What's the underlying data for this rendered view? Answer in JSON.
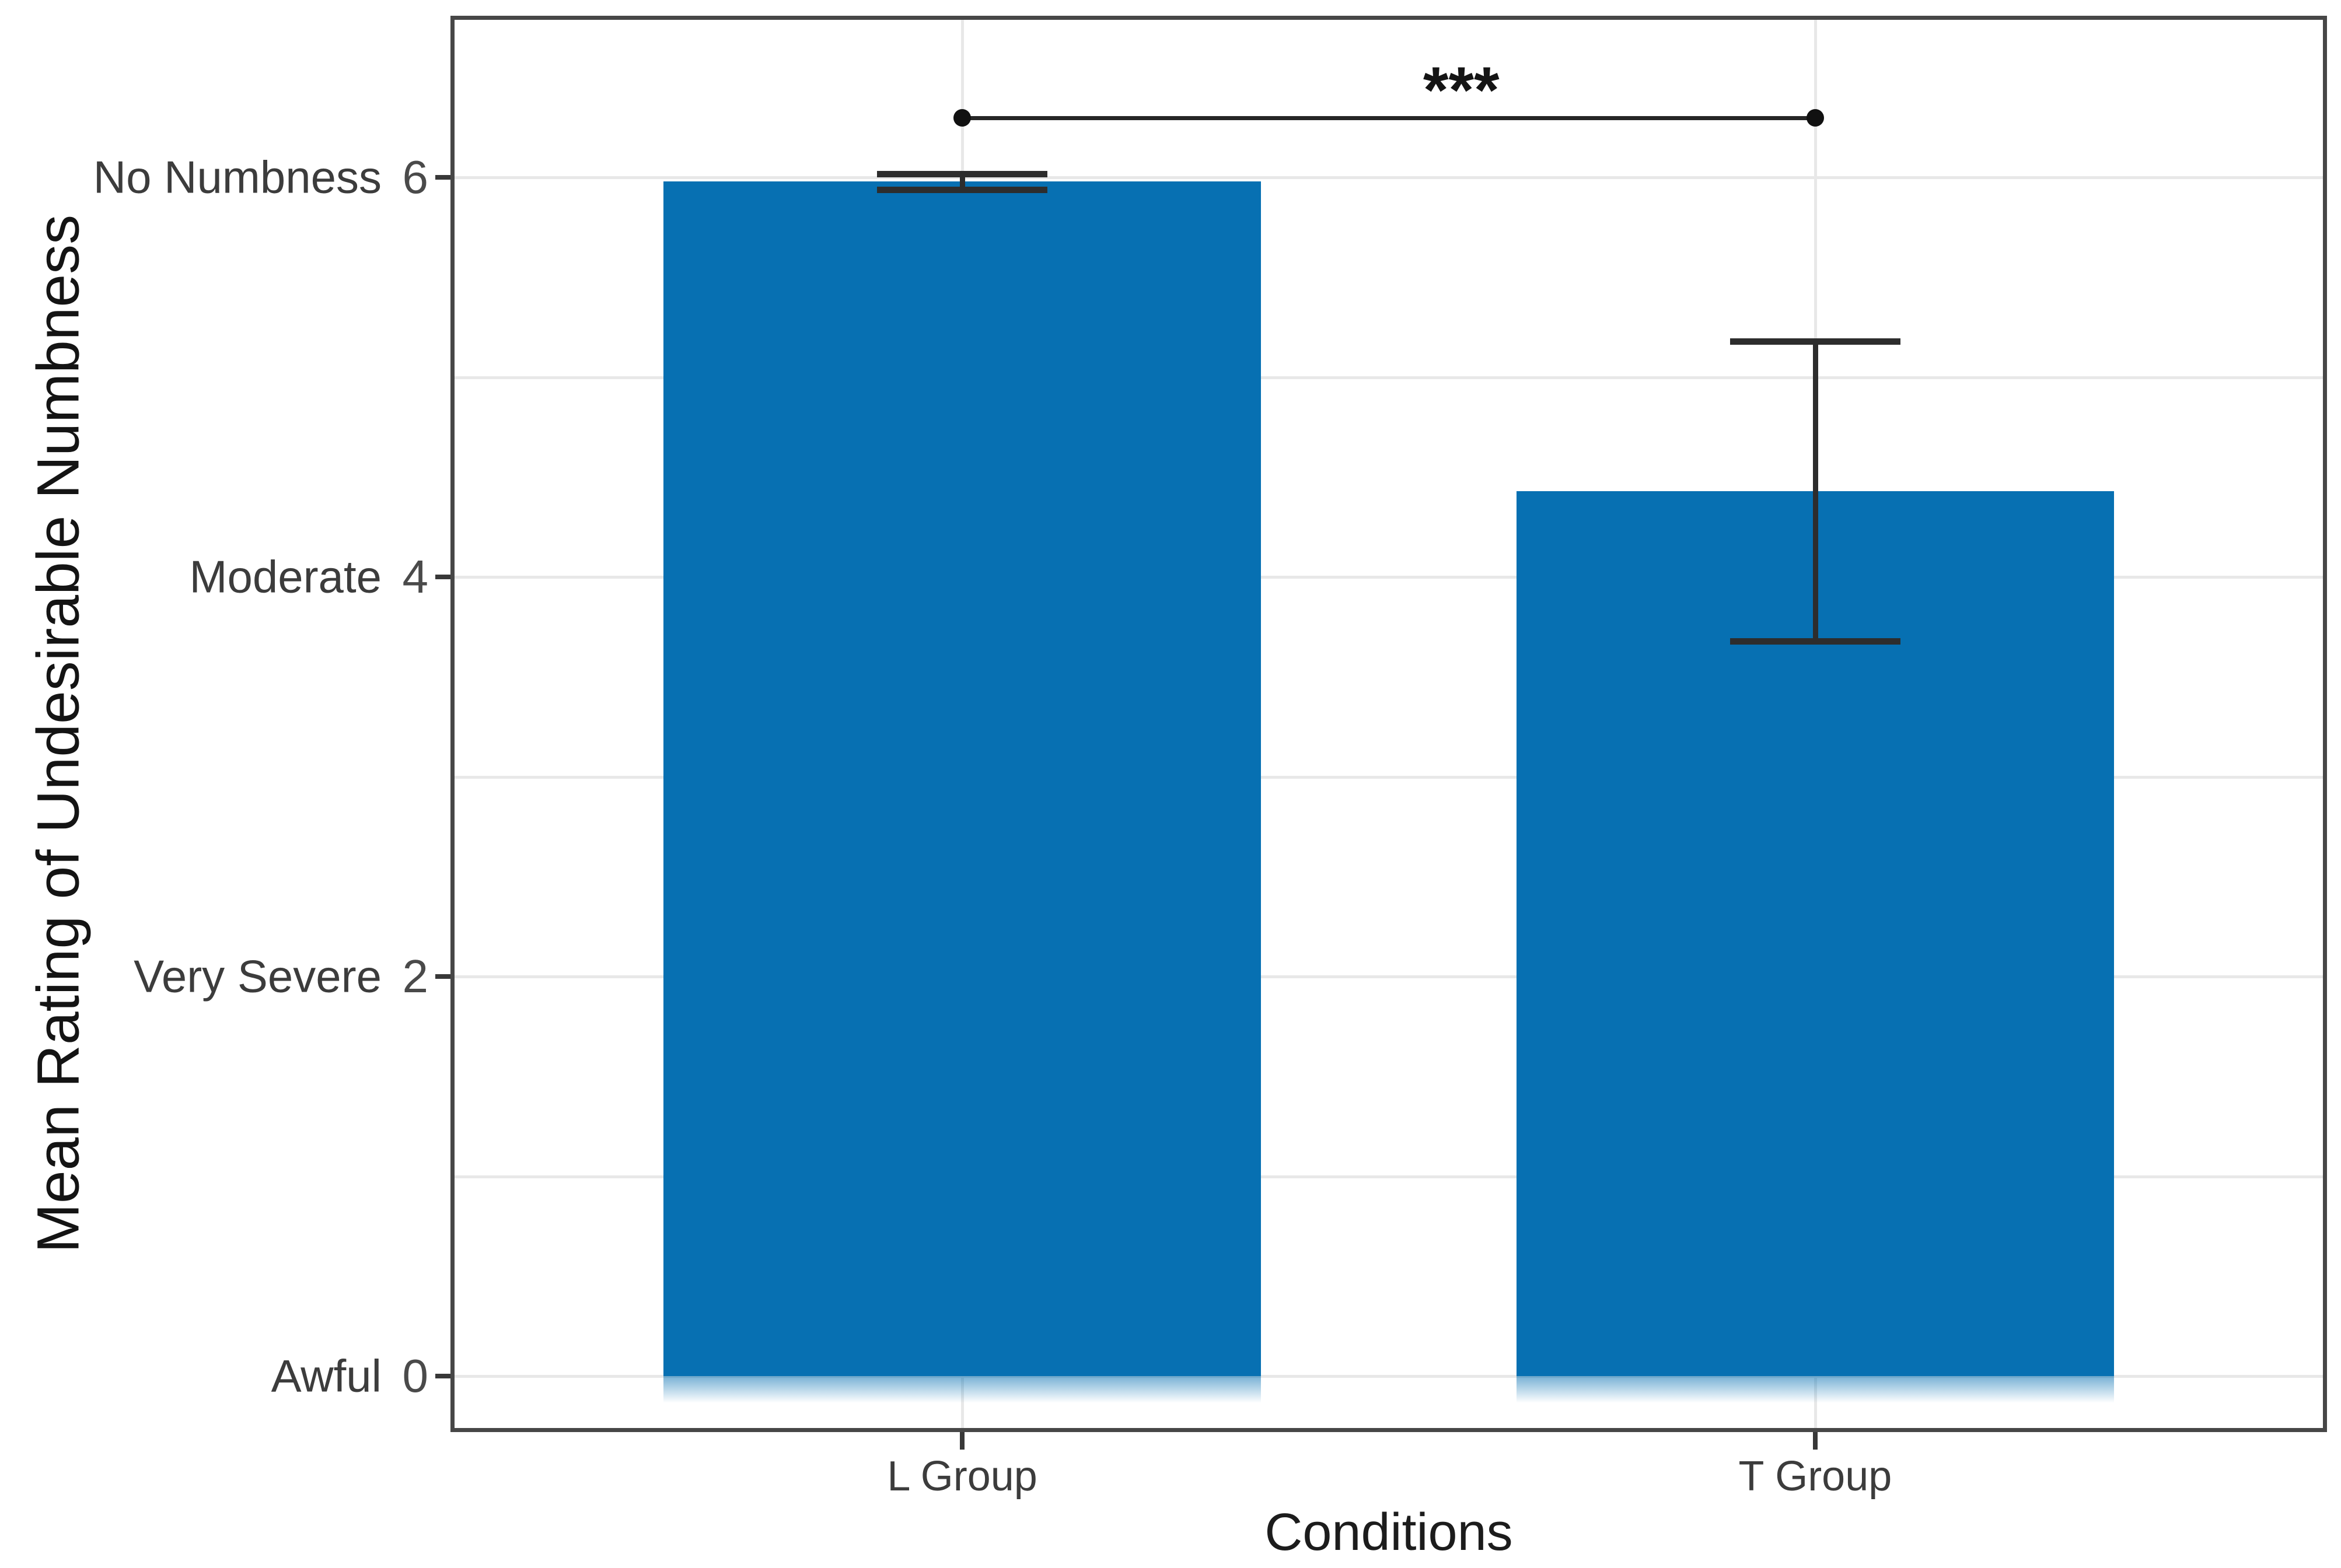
{
  "chart_data": {
    "type": "bar",
    "title": "",
    "xlabel": "Conditions",
    "ylabel": "Mean Rating of Undesirable Numbness",
    "categories": [
      "L Group",
      "T Group"
    ],
    "values": [
      5.98,
      4.43
    ],
    "error_bars": [
      {
        "lower": 5.94,
        "upper": 6.02
      },
      {
        "lower": 3.68,
        "upper": 5.18
      }
    ],
    "y_ticks": [
      {
        "value": 0,
        "number": "0",
        "label": "Awful"
      },
      {
        "value": 2,
        "number": "2",
        "label": "Very Severe"
      },
      {
        "value": 4,
        "number": "4",
        "label": "Moderate"
      },
      {
        "value": 6,
        "number": "6",
        "label": "No Numbness"
      }
    ],
    "y_gridlines": [
      0,
      1,
      2,
      3,
      4,
      5,
      6
    ],
    "ylim": [
      -0.28,
      6.81
    ],
    "xlim": [
      0.4,
      2.6
    ],
    "x_centers": [
      1,
      2
    ],
    "bar_width": 0.7,
    "cap_width": 0.2,
    "bar_color": "#0770b2",
    "grid_color": "#e8e8e8",
    "significance": {
      "label": "***",
      "y": 6.3,
      "from": 1,
      "to": 2,
      "label_x": 1.585,
      "label_y": 6.6
    },
    "legend": null,
    "grid": "on"
  }
}
